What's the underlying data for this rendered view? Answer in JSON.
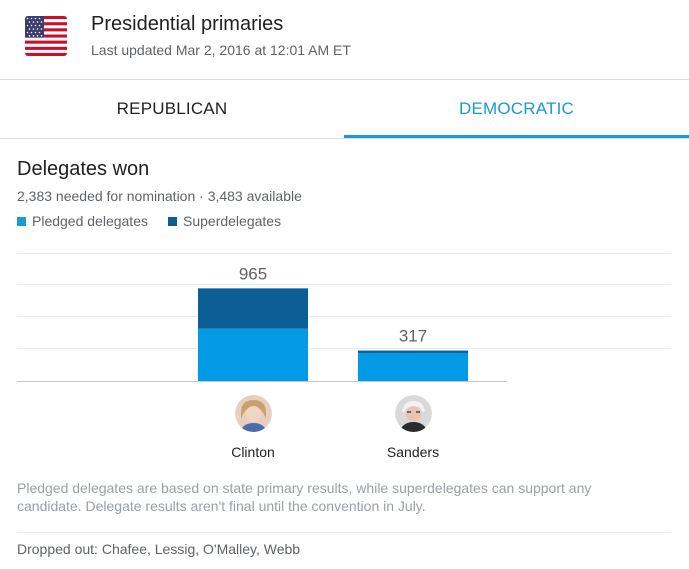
{
  "header": {
    "title": "Presidential primaries",
    "updated": "Last updated Mar 2, 2016 at 12:01 AM ET",
    "flag_icon": "us-flag-icon"
  },
  "tabs": [
    {
      "label": "REPUBLICAN",
      "active": false
    },
    {
      "label": "DEMOCRATIC",
      "active": true
    }
  ],
  "delegates": {
    "title": "Delegates won",
    "subtitle": "2,383 needed for nomination · 3,483 available"
  },
  "legend": [
    {
      "label": "Pledged delegates",
      "color": "#1a9ad6"
    },
    {
      "label": "Superdelegates",
      "color": "#0d5c91"
    }
  ],
  "colors": {
    "accent": "#1a9ad6",
    "pledged": "#039be5",
    "super": "#0b5e96",
    "gridline": "#e8eaed",
    "baseline": "#c8c8c8"
  },
  "chart_data": {
    "type": "bar",
    "stacked": true,
    "categories": [
      "Clinton",
      "Sanders"
    ],
    "series": [
      {
        "name": "Pledged delegates",
        "values": [
          544,
          292
        ]
      },
      {
        "name": "Superdelegates",
        "values": [
          421,
          25
        ]
      }
    ],
    "totals": [
      "965",
      "317"
    ],
    "ylim": [
      0,
      1000
    ],
    "grid": true,
    "legend_position": "top-left"
  },
  "candidates": [
    {
      "name": "Clinton"
    },
    {
      "name": "Sanders"
    }
  ],
  "note": "Pledged delegates are based on state primary results, while superdelegates can support any candidate. Delegate results aren't final until the convention in July.",
  "dropped_out": "Dropped out: Chafee, Lessig, O'Malley, Webb"
}
